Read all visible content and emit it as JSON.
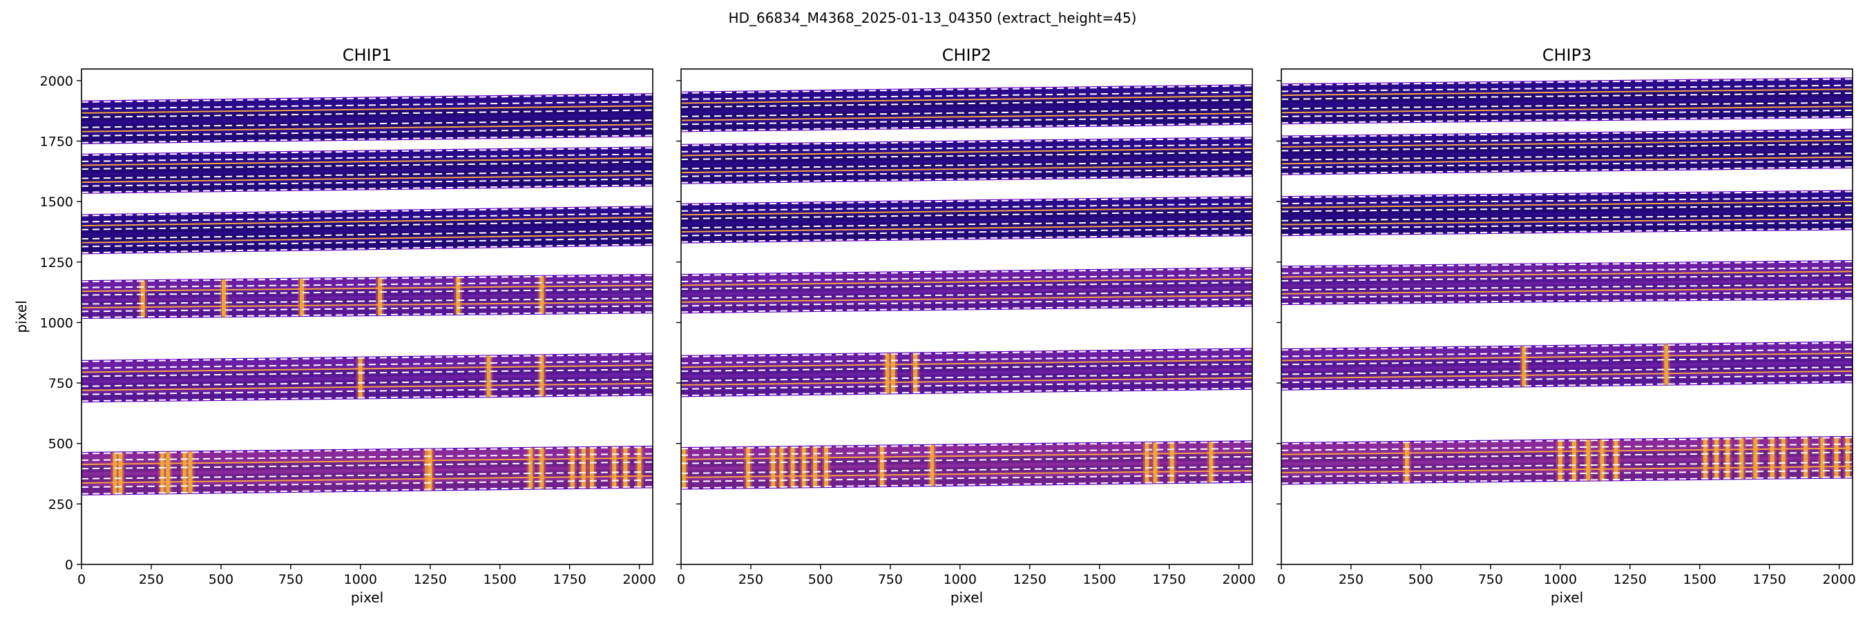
{
  "figure": {
    "suptitle": "HD_66834_M4368_2025-01-13_04350  (extract_height=45)"
  },
  "colors": {
    "band_dark": "#2a0a8a",
    "band_mid": "#6a1fa3",
    "band_light": "#8a2a9a",
    "band_edge": "#5b00b5",
    "trace_line": "#f4a340",
    "dash_line": "#ffffff",
    "hot_line": "#f2b83a",
    "hot_mid": "#d95f4b"
  },
  "chart_data": [
    {
      "type": "heatmap",
      "title": "CHIP1",
      "xlabel": "pixel",
      "ylabel": "pixel",
      "xlim": [
        0,
        2048
      ],
      "ylim": [
        0,
        2048
      ],
      "xticks": [
        0,
        250,
        500,
        750,
        1000,
        1250,
        1500,
        1750,
        2000
      ],
      "yticks": [
        0,
        250,
        500,
        750,
        1000,
        1250,
        1500,
        1750,
        2000
      ],
      "orders": [
        {
          "y_lower_left": 288,
          "y_upper_left": 462,
          "y_lower_right": 318,
          "y_upper_right": 488,
          "level": "bright",
          "emission_x": [
            120,
            140,
            290,
            310,
            370,
            390,
            1240,
            1250,
            1610,
            1650,
            1760,
            1800,
            1830,
            1910,
            1950,
            2000
          ]
        },
        {
          "y_lower_left": 672,
          "y_upper_left": 842,
          "y_lower_right": 700,
          "y_upper_right": 872,
          "level": "mid",
          "emission_x": [
            1460,
            1650,
            1000
          ]
        },
        {
          "y_lower_left": 1018,
          "y_upper_left": 1172,
          "y_lower_right": 1040,
          "y_upper_right": 1198,
          "level": "mid",
          "emission_x": [
            220,
            510,
            790,
            1070,
            1350,
            1650
          ]
        },
        {
          "y_lower_left": 1285,
          "y_upper_left": 1445,
          "y_lower_right": 1320,
          "y_upper_right": 1480,
          "level": "dark",
          "emission_x": []
        },
        {
          "y_lower_left": 1535,
          "y_upper_left": 1695,
          "y_lower_right": 1565,
          "y_upper_right": 1725,
          "level": "dark",
          "emission_x": []
        },
        {
          "y_lower_left": 1740,
          "y_upper_left": 1915,
          "y_lower_right": 1770,
          "y_upper_right": 1945,
          "level": "dark",
          "emission_x": []
        }
      ]
    },
    {
      "type": "heatmap",
      "title": "CHIP2",
      "xlabel": "pixel",
      "ylabel": "",
      "xlim": [
        0,
        2048
      ],
      "ylim": [
        0,
        2048
      ],
      "xticks": [
        0,
        250,
        500,
        750,
        1000,
        1250,
        1500,
        1750,
        2000
      ],
      "yticks": [
        0,
        250,
        500,
        750,
        1000,
        1250,
        1500,
        1750,
        2000
      ],
      "orders": [
        {
          "y_lower_left": 312,
          "y_upper_left": 482,
          "y_lower_right": 340,
          "y_upper_right": 510,
          "level": "bright",
          "emission_x": [
            10,
            240,
            330,
            360,
            400,
            440,
            480,
            520,
            720,
            900,
            1670,
            1700,
            1760,
            1900
          ]
        },
        {
          "y_lower_left": 695,
          "y_upper_left": 862,
          "y_lower_right": 725,
          "y_upper_right": 892,
          "level": "mid",
          "emission_x": [
            740,
            760,
            840
          ]
        },
        {
          "y_lower_left": 1040,
          "y_upper_left": 1198,
          "y_lower_right": 1068,
          "y_upper_right": 1226,
          "level": "mid",
          "emission_x": []
        },
        {
          "y_lower_left": 1330,
          "y_upper_left": 1490,
          "y_lower_right": 1360,
          "y_upper_right": 1520,
          "level": "dark",
          "emission_x": []
        },
        {
          "y_lower_left": 1575,
          "y_upper_left": 1735,
          "y_lower_right": 1605,
          "y_upper_right": 1765,
          "level": "dark",
          "emission_x": []
        },
        {
          "y_lower_left": 1790,
          "y_upper_left": 1952,
          "y_lower_right": 1820,
          "y_upper_right": 1982,
          "level": "dark",
          "emission_x": []
        }
      ]
    },
    {
      "type": "heatmap",
      "title": "CHIP3",
      "xlabel": "pixel",
      "ylabel": "",
      "xlim": [
        0,
        2048
      ],
      "ylim": [
        0,
        2048
      ],
      "xticks": [
        0,
        250,
        500,
        750,
        1000,
        1250,
        1500,
        1750,
        2000
      ],
      "yticks": [
        0,
        250,
        500,
        750,
        1000,
        1250,
        1500,
        1750,
        2000
      ],
      "orders": [
        {
          "y_lower_left": 332,
          "y_upper_left": 502,
          "y_lower_right": 358,
          "y_upper_right": 528,
          "level": "bright",
          "emission_x": [
            450,
            1000,
            1050,
            1100,
            1150,
            1200,
            1520,
            1560,
            1600,
            1650,
            1700,
            1760,
            1800,
            1880,
            1940,
            1990,
            2030
          ]
        },
        {
          "y_lower_left": 722,
          "y_upper_left": 890,
          "y_lower_right": 752,
          "y_upper_right": 920,
          "level": "mid",
          "emission_x": [
            870,
            1380
          ]
        },
        {
          "y_lower_left": 1075,
          "y_upper_left": 1232,
          "y_lower_right": 1098,
          "y_upper_right": 1255,
          "level": "mid",
          "emission_x": []
        },
        {
          "y_lower_left": 1360,
          "y_upper_left": 1520,
          "y_lower_right": 1385,
          "y_upper_right": 1545,
          "level": "dark",
          "emission_x": []
        },
        {
          "y_lower_left": 1612,
          "y_upper_left": 1770,
          "y_lower_right": 1640,
          "y_upper_right": 1798,
          "level": "dark",
          "emission_x": []
        },
        {
          "y_lower_left": 1822,
          "y_upper_left": 1985,
          "y_lower_right": 1848,
          "y_upper_right": 2010,
          "level": "dark",
          "emission_x": []
        }
      ]
    }
  ]
}
